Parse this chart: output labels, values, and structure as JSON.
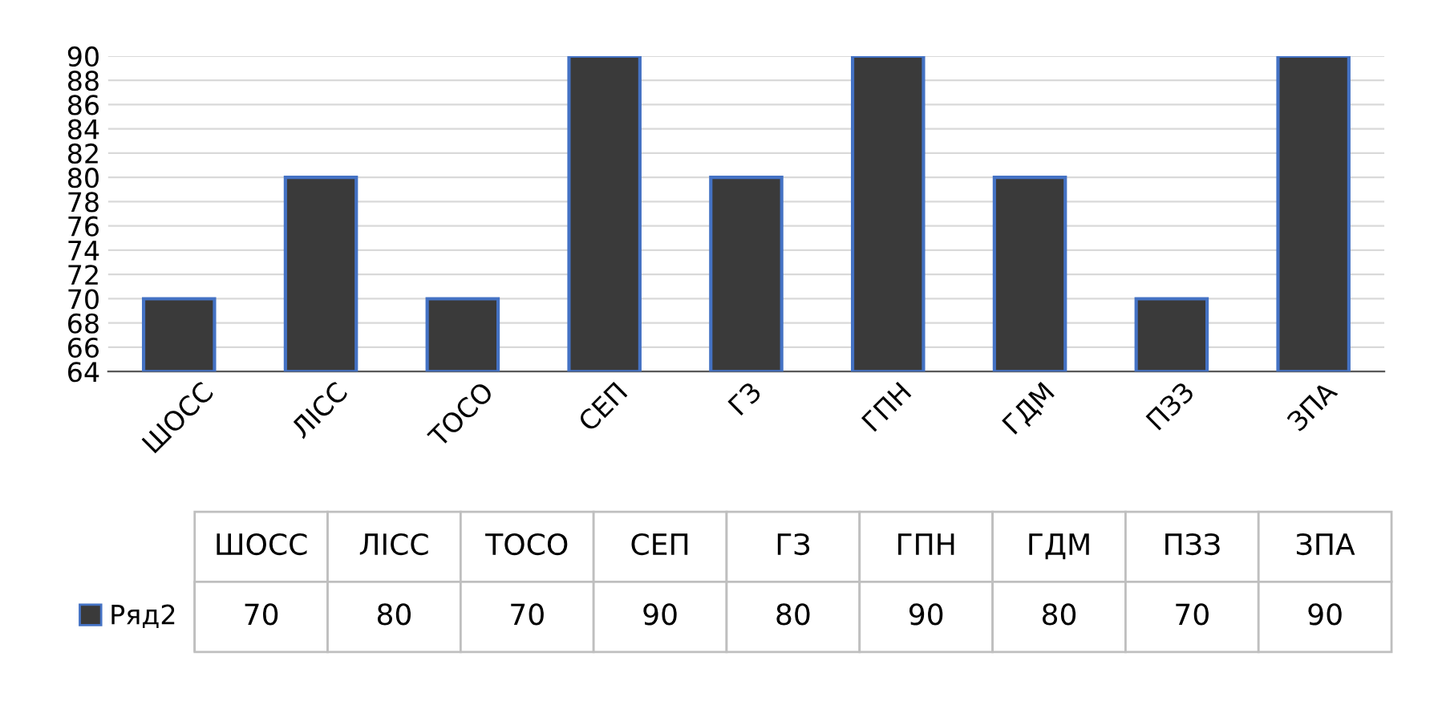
{
  "chart_data": {
    "type": "bar",
    "categories": [
      "ШОСС",
      "ЛІСС",
      "ТОСО",
      "СЕП",
      "ГЗ",
      "ГПН",
      "ГДМ",
      "ПЗЗ",
      "ЗПА"
    ],
    "series": [
      {
        "name": "Ряд2",
        "color": "#3a3a3a",
        "values": [
          70,
          80,
          70,
          90,
          80,
          90,
          80,
          70,
          90
        ]
      }
    ],
    "ylim": [
      64,
      90
    ],
    "yticks": [
      64,
      66,
      68,
      70,
      72,
      74,
      76,
      78,
      80,
      82,
      84,
      86,
      88,
      90
    ],
    "grid": "y",
    "data_labels": true,
    "legend": "bottom"
  }
}
